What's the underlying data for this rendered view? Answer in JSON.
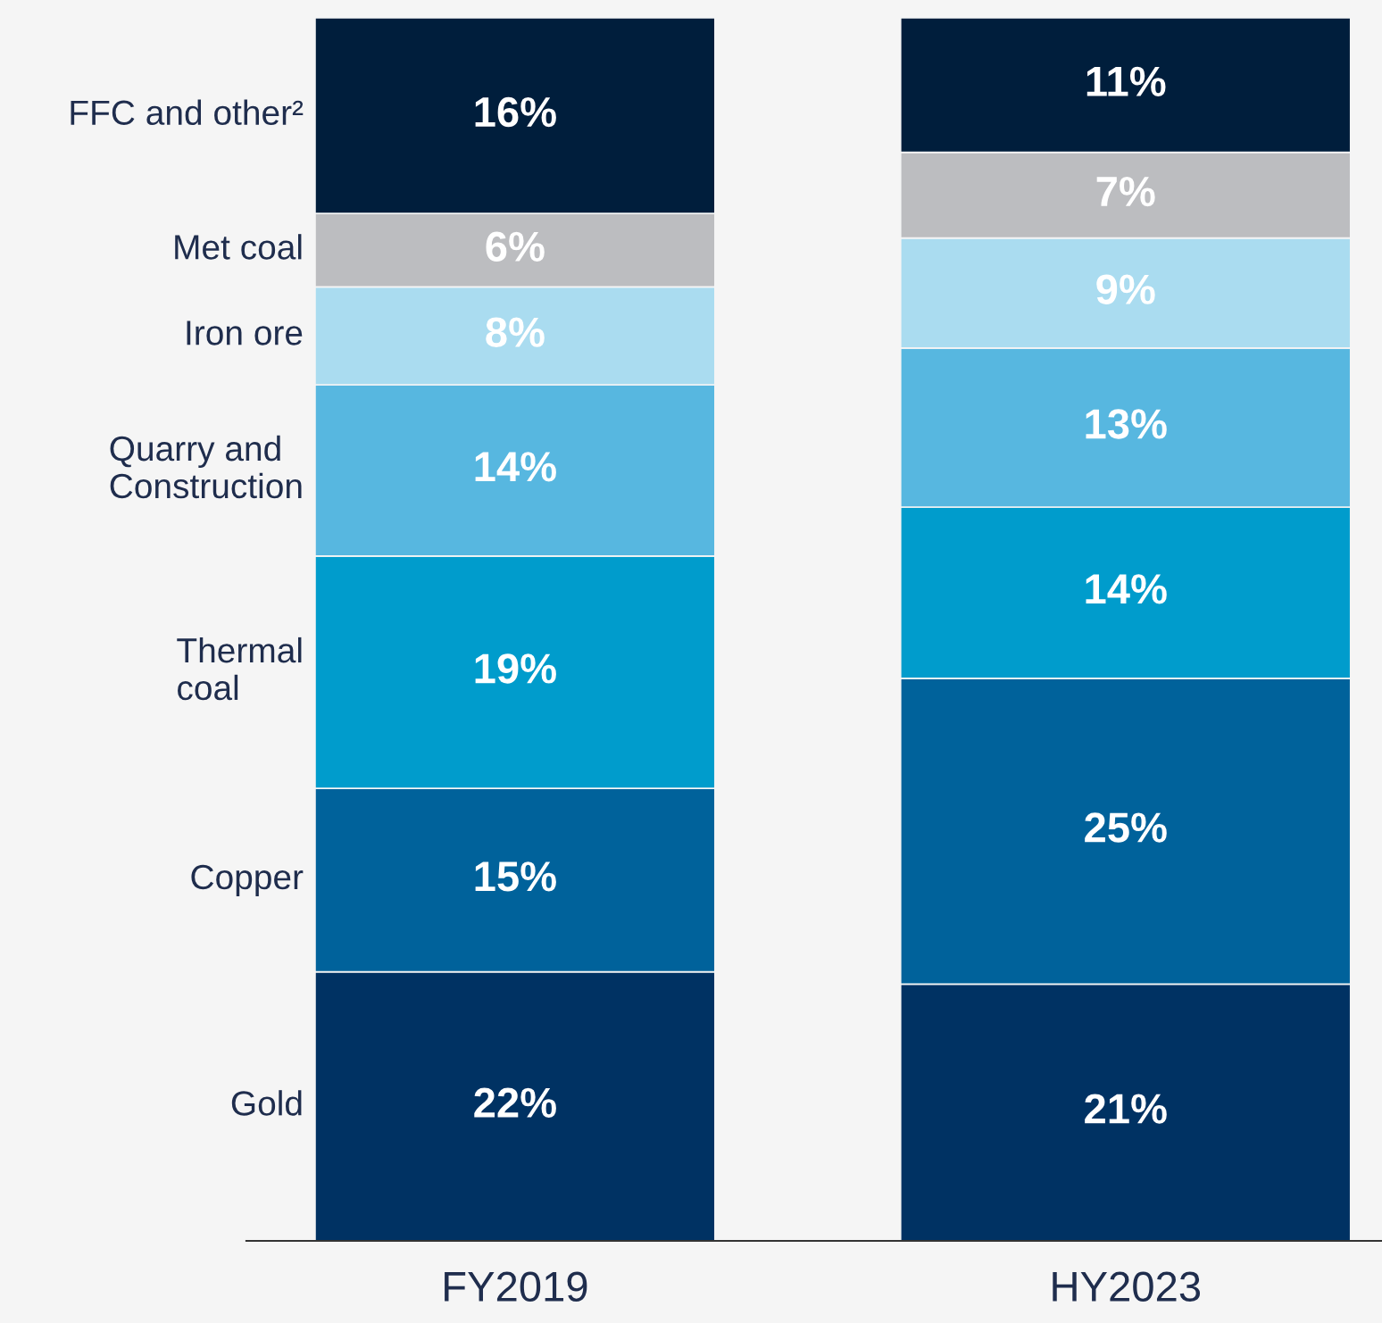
{
  "chart_data": {
    "type": "bar",
    "stacked": true,
    "categories": [
      "FY2019",
      "HY2023"
    ],
    "series": [
      {
        "name": "Gold",
        "color": "#003263",
        "values": [
          22,
          21
        ],
        "value_labels": [
          "22%",
          "21%"
        ]
      },
      {
        "name": "Copper",
        "color": "#00629b",
        "values": [
          15,
          25
        ],
        "value_labels": [
          "15%",
          "25%"
        ]
      },
      {
        "name": "Thermal\ncoal",
        "color": "#009ccc",
        "values": [
          19,
          14
        ],
        "value_labels": [
          "19%",
          "14%"
        ]
      },
      {
        "name": "Quarry and\nConstruction",
        "color": "#57b7e0",
        "values": [
          14,
          13
        ],
        "value_labels": [
          "14%",
          "13%"
        ]
      },
      {
        "name": "Iron ore",
        "color": "#aadcf0",
        "values": [
          8,
          9
        ],
        "value_labels": [
          "8%",
          "9%"
        ]
      },
      {
        "name": "Met coal",
        "color": "#bcbdc0",
        "values": [
          6,
          7
        ],
        "value_labels": [
          "6%",
          "7%"
        ]
      },
      {
        "name": "FFC and other²",
        "color": "#001e3c",
        "values": [
          16,
          11
        ],
        "value_labels": [
          "16%",
          "11%"
        ]
      }
    ],
    "tick_labels": "x",
    "grid": false,
    "legend": false
  }
}
